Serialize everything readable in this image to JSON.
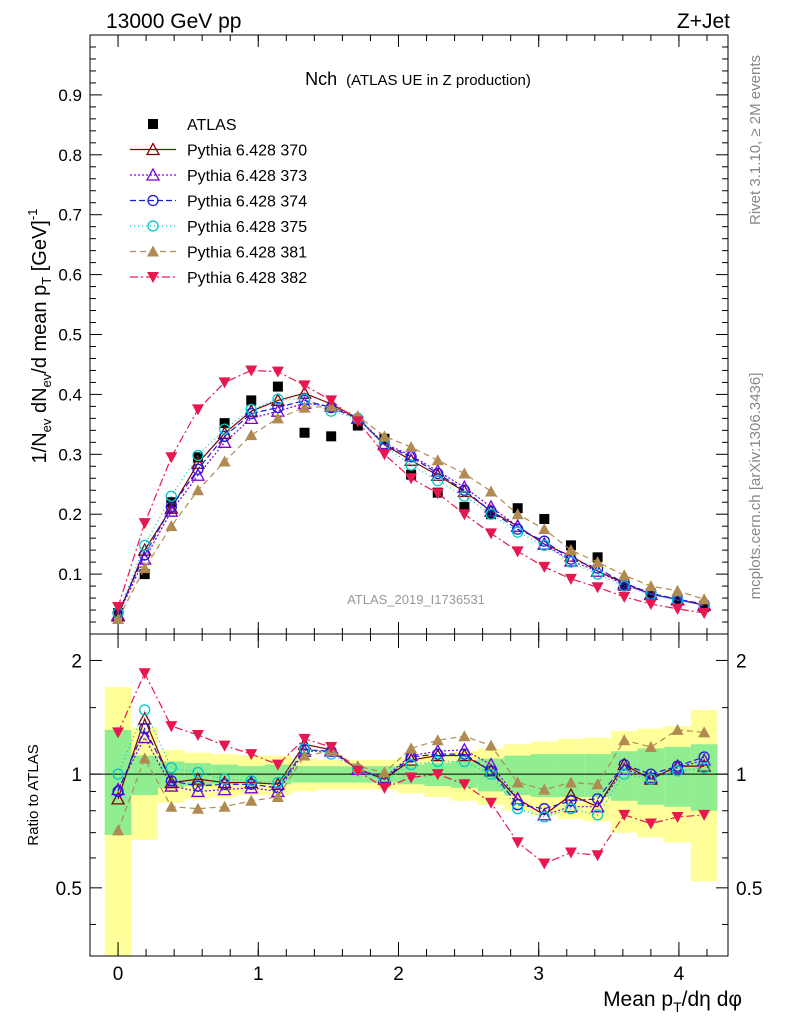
{
  "header": {
    "left": "13000 GeV pp",
    "right": "Z+Jet"
  },
  "chart_data": [
    {
      "type": "scatter",
      "title": "Nch",
      "subtitle": "(ATLAS UE in Z production)",
      "watermark": "ATLAS_2019_I1736531",
      "side_label_top": "Rivet 3.1.10, ≥ 2M events",
      "side_label_bottom": "mcplots.cern.ch [arXiv:1306.3436]",
      "ylabel": "1/N_ev dN_ev/d mean p_T [GeV]^-1",
      "ylabel_parts": {
        "a": "1/N",
        "b": "ev",
        "c": " dN",
        "d": "ev",
        "e": "/d mean p",
        "f": "T",
        "g": " [GeV]",
        "h": "-1"
      },
      "xlim": [
        -0.2,
        4.35
      ],
      "ylim": [
        0,
        1.0
      ],
      "yticks": [
        {
          "v": 0.1,
          "label": "0.1"
        },
        {
          "v": 0.2,
          "label": "0.2"
        },
        {
          "v": 0.3,
          "label": "0.3"
        },
        {
          "v": 0.4,
          "label": "0.4"
        },
        {
          "v": 0.5,
          "label": "0.5"
        },
        {
          "v": 0.6,
          "label": "0.6"
        },
        {
          "v": 0.7,
          "label": "0.7"
        },
        {
          "v": 0.8,
          "label": "0.8"
        },
        {
          "v": 0.9,
          "label": "0.9"
        }
      ],
      "x": [
        0.0,
        0.19,
        0.38,
        0.57,
        0.76,
        0.95,
        1.14,
        1.33,
        1.52,
        1.71,
        1.9,
        2.09,
        2.28,
        2.47,
        2.66,
        2.85,
        3.04,
        3.23,
        3.42,
        3.61,
        3.8,
        3.99,
        4.18
      ],
      "series": [
        {
          "name": "ATLAS",
          "color": "#000000",
          "marker": "square",
          "values": [
            0.035,
            0.1,
            0.22,
            0.295,
            0.352,
            0.39,
            0.413,
            0.336,
            0.33,
            0.348,
            0.326,
            0.266,
            0.236,
            0.212,
            0.2,
            0.21,
            0.192,
            0.148,
            0.128,
            0.08,
            0.068,
            0.055,
            0.045
          ]
        },
        {
          "name": "Pythia 6.428 370",
          "color": "#800000",
          "marker": "triangle-open",
          "dash": "",
          "values": [
            0.03,
            0.14,
            0.21,
            0.285,
            0.335,
            0.372,
            0.39,
            0.402,
            0.384,
            0.36,
            0.316,
            0.29,
            0.265,
            0.238,
            0.205,
            0.18,
            0.15,
            0.13,
            0.105,
            0.085,
            0.066,
            0.058,
            0.048
          ]
        },
        {
          "name": "Pythia 6.428 373",
          "color": "#7b00d6",
          "marker": "triangle-open",
          "dash": "2,2",
          "values": [
            0.032,
            0.125,
            0.205,
            0.265,
            0.32,
            0.36,
            0.372,
            0.385,
            0.38,
            0.36,
            0.318,
            0.298,
            0.272,
            0.245,
            0.212,
            0.18,
            0.15,
            0.122,
            0.105,
            0.082,
            0.067,
            0.057,
            0.049
          ]
        },
        {
          "name": "Pythia 6.428 374",
          "color": "#1a1adb",
          "marker": "circle-open",
          "dash": "6,3",
          "values": [
            0.035,
            0.132,
            0.212,
            0.275,
            0.33,
            0.368,
            0.378,
            0.39,
            0.378,
            0.36,
            0.316,
            0.296,
            0.268,
            0.24,
            0.205,
            0.175,
            0.155,
            0.125,
            0.11,
            0.085,
            0.068,
            0.058,
            0.05
          ]
        },
        {
          "name": "Pythia 6.428 375",
          "color": "#00c8c8",
          "marker": "circle-open",
          "dash": "1,3",
          "values": [
            0.035,
            0.148,
            0.23,
            0.298,
            0.342,
            0.375,
            0.392,
            0.392,
            0.372,
            0.36,
            0.314,
            0.282,
            0.256,
            0.23,
            0.2,
            0.17,
            0.148,
            0.12,
            0.1,
            0.08,
            0.066,
            0.056,
            0.047
          ]
        },
        {
          "name": "Pythia 6.428 381",
          "color": "#b08a50",
          "marker": "triangle",
          "dash": "6,4",
          "values": [
            0.025,
            0.11,
            0.18,
            0.24,
            0.288,
            0.332,
            0.36,
            0.378,
            0.38,
            0.364,
            0.33,
            0.312,
            0.29,
            0.268,
            0.238,
            0.2,
            0.175,
            0.14,
            0.12,
            0.098,
            0.08,
            0.072,
            0.058
          ]
        },
        {
          "name": "Pythia 6.428 382",
          "color": "#e8174f",
          "marker": "triangle-down",
          "dash": "8,3,2,3",
          "values": [
            0.045,
            0.185,
            0.295,
            0.375,
            0.42,
            0.44,
            0.438,
            0.415,
            0.39,
            0.355,
            0.3,
            0.26,
            0.235,
            0.2,
            0.168,
            0.138,
            0.112,
            0.092,
            0.078,
            0.062,
            0.05,
            0.042,
            0.035
          ]
        }
      ]
    },
    {
      "type": "scatter",
      "ylabel": "Ratio to ATLAS",
      "xlabel": "Mean p_T/dη dφ",
      "xlabel_parts": {
        "a": "Mean p",
        "b": "T",
        "c": "/dη dφ"
      },
      "xlim": [
        -0.2,
        4.35
      ],
      "ylim": [
        0.33,
        2.35
      ],
      "ylog": true,
      "yticks": [
        {
          "v": 0.5,
          "label": "0.5"
        },
        {
          "v": 1,
          "label": "1"
        },
        {
          "v": 2,
          "label": "2"
        }
      ],
      "xticks": [
        {
          "v": 0,
          "label": "0"
        },
        {
          "v": 1,
          "label": "1"
        },
        {
          "v": 2,
          "label": "2"
        },
        {
          "v": 3,
          "label": "3"
        },
        {
          "v": 4,
          "label": "4"
        }
      ],
      "band_inner": [
        0.31,
        0.12,
        0.08,
        0.07,
        0.06,
        0.05,
        0.06,
        0.05,
        0.05,
        0.05,
        0.05,
        0.06,
        0.07,
        0.08,
        0.1,
        0.12,
        0.13,
        0.13,
        0.13,
        0.15,
        0.17,
        0.18,
        0.2
      ],
      "band_outer": [
        0.7,
        0.33,
        0.16,
        0.14,
        0.13,
        0.12,
        0.12,
        0.1,
        0.09,
        0.09,
        0.09,
        0.11,
        0.13,
        0.15,
        0.17,
        0.2,
        0.22,
        0.24,
        0.25,
        0.3,
        0.32,
        0.34,
        0.48
      ],
      "series": [
        {
          "name": "Pythia 6.428 370",
          "values": [
            0.86,
            1.4,
            0.95,
            0.97,
            0.95,
            0.95,
            0.94,
            1.2,
            1.16,
            1.03,
            0.97,
            1.09,
            1.12,
            1.12,
            1.02,
            0.86,
            0.78,
            0.88,
            0.82,
            1.06,
            0.97,
            1.05,
            1.05
          ]
        },
        {
          "name": "Pythia 6.428 373",
          "values": [
            0.91,
            1.25,
            0.93,
            0.9,
            0.91,
            0.92,
            0.9,
            1.15,
            1.15,
            1.03,
            0.98,
            1.12,
            1.15,
            1.16,
            1.06,
            0.86,
            0.78,
            0.82,
            0.82,
            1.03,
            0.98,
            1.04,
            1.09
          ]
        },
        {
          "name": "Pythia 6.428 374",
          "values": [
            0.9,
            1.32,
            0.96,
            0.93,
            0.94,
            0.94,
            0.92,
            1.16,
            1.15,
            1.03,
            0.97,
            1.11,
            1.13,
            1.13,
            1.02,
            0.83,
            0.81,
            0.85,
            0.86,
            1.06,
            1.0,
            1.05,
            1.11
          ]
        },
        {
          "name": "Pythia 6.428 375",
          "values": [
            1.0,
            1.48,
            1.04,
            1.01,
            0.97,
            0.96,
            0.95,
            1.17,
            1.13,
            1.03,
            0.96,
            1.06,
            1.08,
            1.08,
            1.0,
            0.81,
            0.77,
            0.81,
            0.78,
            1.0,
            0.97,
            1.02,
            1.04
          ]
        },
        {
          "name": "Pythia 6.428 381",
          "values": [
            0.71,
            1.1,
            0.82,
            0.81,
            0.82,
            0.85,
            0.87,
            1.12,
            1.15,
            1.05,
            1.01,
            1.17,
            1.23,
            1.26,
            1.19,
            0.95,
            0.91,
            0.95,
            0.94,
            1.23,
            1.18,
            1.31,
            1.29
          ]
        },
        {
          "name": "Pythia 6.428 382",
          "values": [
            1.29,
            1.85,
            1.34,
            1.27,
            1.19,
            1.13,
            1.06,
            1.24,
            1.18,
            1.02,
            0.92,
            0.98,
            1.0,
            0.94,
            0.84,
            0.66,
            0.58,
            0.62,
            0.61,
            0.78,
            0.74,
            0.77,
            0.78
          ]
        }
      ]
    }
  ]
}
